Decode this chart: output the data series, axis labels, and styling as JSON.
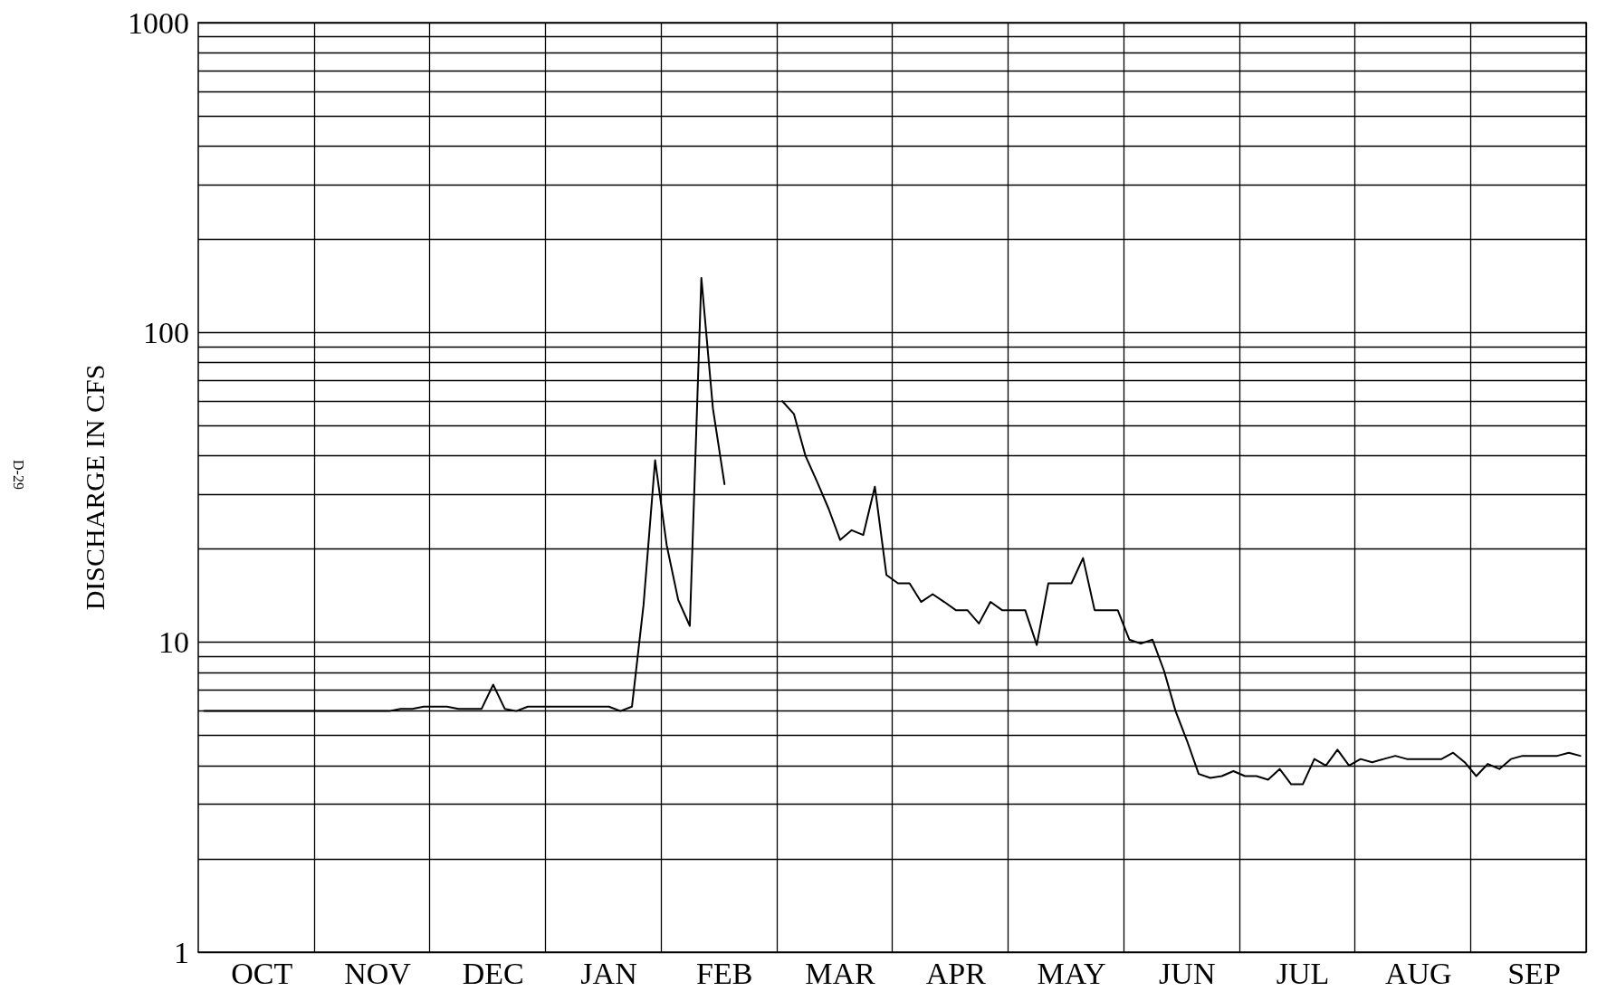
{
  "chart_data": {
    "type": "line",
    "ylabel": "DISCHARGE IN CFS",
    "annotations": [
      "D-29"
    ],
    "log": "y",
    "grid": true,
    "marker": "none",
    "line_style": "solid",
    "categories": [
      null,
      null,
      null,
      null,
      null,
      "OCT",
      null,
      null,
      null,
      null,
      null,
      null,
      null,
      null,
      null,
      "NOV",
      null,
      null,
      null,
      null,
      null,
      null,
      null,
      null,
      null,
      "DEC",
      null,
      null,
      null,
      null,
      null,
      null,
      null,
      null,
      null,
      "JAN",
      null,
      null,
      null,
      null,
      null,
      null,
      null,
      null,
      null,
      "FEB",
      null,
      null,
      null,
      null,
      null,
      null,
      null,
      null,
      null,
      "MAR",
      null,
      null,
      null,
      null,
      null,
      null,
      null,
      null,
      null,
      "APR",
      null,
      null,
      null,
      null,
      null,
      null,
      null,
      null,
      null,
      "MAY",
      null,
      null,
      null,
      null,
      null,
      null,
      null,
      null,
      null,
      "JUN",
      null,
      null,
      null,
      null,
      null,
      null,
      null,
      null,
      null,
      "JUL",
      null,
      null,
      null,
      null,
      null,
      null,
      null,
      null,
      null,
      "AUG",
      null,
      null,
      null,
      null,
      null,
      null,
      null,
      null,
      null,
      "SEP",
      null,
      null,
      null,
      null
    ],
    "ylim": [
      1,
      1000
    ],
    "yticks": [
      1,
      {
        "value": 2,
        "label": null
      },
      {
        "value": 3,
        "label": null
      },
      {
        "value": 4,
        "label": null
      },
      {
        "value": 5,
        "label": null
      },
      {
        "value": 6,
        "label": null
      },
      {
        "value": 7,
        "label": null
      },
      {
        "value": 8,
        "label": null
      },
      {
        "value": 9,
        "label": null
      },
      10,
      {
        "value": 20,
        "label": null
      },
      {
        "value": 30,
        "label": null
      },
      {
        "value": 40,
        "label": null
      },
      {
        "value": 50,
        "label": null
      },
      {
        "value": 60,
        "label": null
      },
      {
        "value": 70,
        "label": null
      },
      {
        "value": 80,
        "label": null
      },
      {
        "value": 90,
        "label": null
      },
      100,
      {
        "value": 200,
        "label": null
      },
      {
        "value": 300,
        "label": null
      },
      {
        "value": 400,
        "label": null
      },
      {
        "value": 500,
        "label": null
      },
      {
        "value": 600,
        "label": null
      },
      {
        "value": 700,
        "label": null
      },
      {
        "value": 800,
        "label": null
      },
      {
        "value": 900,
        "label": null
      },
      1000
    ],
    "series": [
      {
        "color": "#000000",
        "values": [
          6.0,
          6.0,
          6.0,
          6.0,
          6.0,
          6.0,
          6.0,
          6.0,
          6.0,
          6.0,
          6.0,
          6.0,
          6.0,
          6.0,
          6.0,
          6.0,
          6.0,
          6.1,
          6.1,
          6.2,
          6.2,
          6.2,
          6.1,
          6.1,
          6.1,
          7.3,
          6.1,
          6.0,
          6.2,
          6.2,
          6.2,
          6.2,
          6.2,
          6.2,
          6.2,
          6.2,
          6.0,
          6.2,
          13.2,
          38.7,
          20.6,
          13.7,
          11.3,
          150,
          56.8,
          32.4,
          null,
          null,
          null,
          null,
          60,
          54.6,
          40,
          33,
          27,
          21.4,
          23,
          22.2,
          31.8,
          16.5,
          15.5,
          15.5,
          13.5,
          14.3,
          13.5,
          12.7,
          12.7,
          11.5,
          13.5,
          12.7,
          12.7,
          12.7,
          9.8,
          15.5,
          15.5,
          15.5,
          18.7,
          12.7,
          12.7,
          12.7,
          10.2,
          9.9,
          10.2,
          8.1,
          6.0,
          4.8,
          3.76,
          3.65,
          3.7,
          3.84,
          3.7,
          3.7,
          3.6,
          3.9,
          3.48,
          3.48,
          4.2,
          4.0,
          4.5,
          4.0,
          4.2,
          4.1,
          4.2,
          4.3,
          4.2,
          4.2,
          4.2,
          4.2,
          4.4,
          4.1,
          3.7,
          4.05,
          3.9,
          4.2,
          4.3,
          4.3,
          4.3,
          4.3,
          4.4,
          4.3
        ]
      }
    ]
  }
}
